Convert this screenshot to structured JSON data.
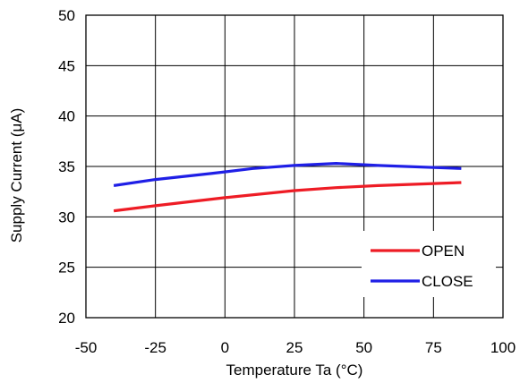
{
  "chart_data": {
    "type": "line",
    "xlabel": "Temperature Ta (°C)",
    "ylabel": "Supply Current (μA)",
    "xlim": [
      -50,
      100
    ],
    "ylim": [
      20,
      50
    ],
    "xticks": [
      "-50",
      "-25",
      "0",
      "25",
      "50",
      "75",
      "100"
    ],
    "yticks": [
      "20",
      "25",
      "30",
      "35",
      "40",
      "45",
      "50"
    ],
    "grid": true,
    "legend_position": "bottom-right",
    "series": [
      {
        "name": "OPEN",
        "color": "#ee1c25",
        "x": [
          -40,
          -25,
          0,
          25,
          40,
          55,
          85
        ],
        "y": [
          30.6,
          31.1,
          31.9,
          32.6,
          32.9,
          33.1,
          33.4
        ]
      },
      {
        "name": "CLOSE",
        "color": "#1f1fe6",
        "x": [
          -40,
          -25,
          -5,
          10,
          25,
          40,
          55,
          85
        ],
        "y": [
          33.1,
          33.7,
          34.3,
          34.8,
          35.1,
          35.3,
          35.1,
          34.8
        ]
      }
    ]
  }
}
